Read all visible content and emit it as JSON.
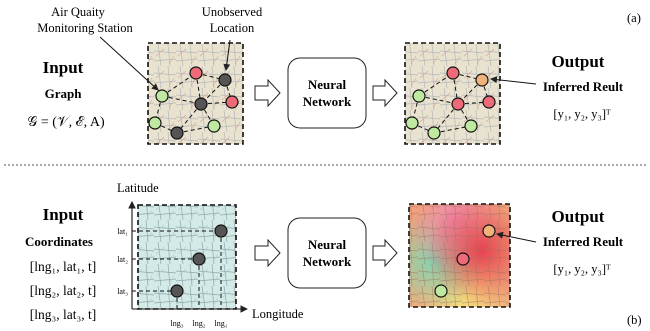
{
  "panel_a": {
    "label": "(a)",
    "callouts": {
      "station": [
        "Air Quaity",
        "Monitoring Station"
      ],
      "unobserved": [
        "Unobserved",
        "Location"
      ]
    },
    "input_title": "Input",
    "input_sub": "Graph",
    "graph_formula": "𝒢 = (𝒱, ℰ, A)",
    "network": [
      "Neural",
      "Network"
    ],
    "output_title": "Output",
    "output_sub": "Inferred Reult",
    "output_vec": "[y₁, y₂, y₃]ᵀ"
  },
  "panel_b": {
    "label": "(b)",
    "input_title": "Input",
    "input_sub": "Coordinates",
    "coords": [
      "[lng₁, lat₁, t]",
      "[lng₂, lat₂, t]",
      "[lng₃, lat₃, t]"
    ],
    "y_axis": "Latitude",
    "x_axis": "Longitude",
    "lat_ticks": [
      "lat₁",
      "lat₂",
      "lat₃"
    ],
    "lng_ticks": [
      "lng₃",
      "lng₂",
      "lng₁"
    ],
    "network": [
      "Neural",
      "Network"
    ],
    "output_title": "Output",
    "output_sub": "Inferred Reult",
    "output_vec": "[y₁, y₂, y₃]ᵀ"
  },
  "colors": {
    "observed": "#bfe8a0",
    "unobserved_dark": "#555555",
    "red": "#ef6a78",
    "orange": "#f1b27a"
  }
}
